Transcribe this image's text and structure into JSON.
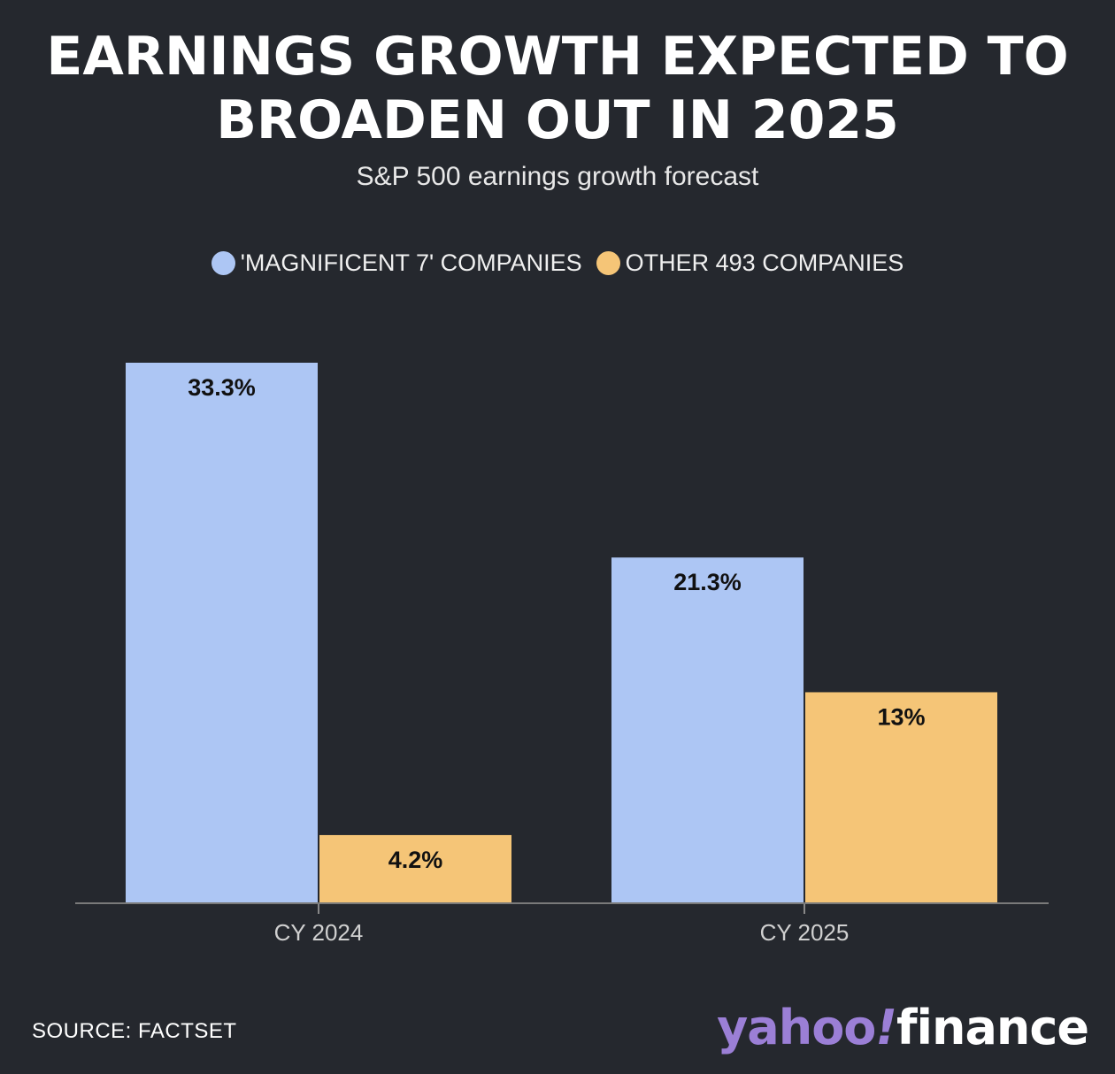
{
  "header": {
    "title_line1": "EARNINGS GROWTH EXPECTED TO",
    "title_line2": "BROADEN OUT IN 2025",
    "subtitle": "S&P 500 earnings growth forecast"
  },
  "legend": {
    "items": [
      {
        "label": "'MAGNIFICENT 7' COMPANIES",
        "color": "#adc6f4"
      },
      {
        "label": "OTHER 493 COMPANIES",
        "color": "#f5c577"
      }
    ]
  },
  "chart_data": {
    "type": "bar",
    "title": "EARNINGS GROWTH EXPECTED TO BROADEN OUT IN 2025",
    "subtitle": "S&P 500 earnings growth forecast",
    "categories": [
      "CY 2024",
      "CY 2025"
    ],
    "series": [
      {
        "name": "'MAGNIFICENT 7' COMPANIES",
        "values": [
          33.3,
          21.3
        ],
        "labels": [
          "33.3%",
          "21.3%"
        ],
        "color": "#adc6f4"
      },
      {
        "name": "OTHER 493 COMPANIES",
        "values": [
          4.2,
          13
        ],
        "labels": [
          "4.2%",
          "13%"
        ],
        "color": "#f5c577"
      }
    ],
    "xlabel": "",
    "ylabel": "",
    "ylim": [
      0,
      33.3
    ],
    "grid": false,
    "legend_position": "top-center"
  },
  "footer": {
    "source": "SOURCE: FACTSET",
    "logo_yahoo": "yahoo",
    "logo_bang": "!",
    "logo_finance": "finance"
  }
}
